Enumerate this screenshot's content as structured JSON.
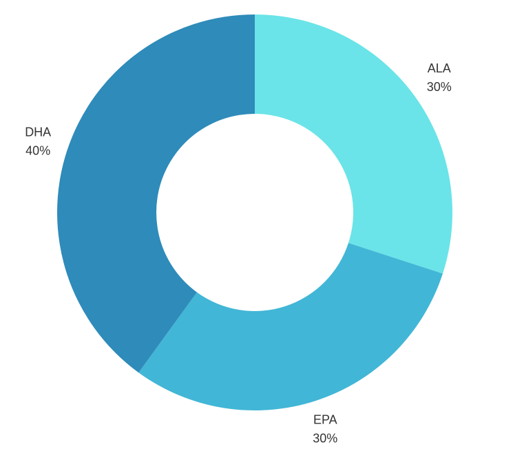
{
  "chart_data": {
    "type": "donut",
    "categories": [
      "ALA",
      "EPA",
      "DHA"
    ],
    "values": [
      30,
      30,
      40
    ],
    "value_labels": [
      "30%",
      "30%",
      "40%"
    ],
    "colors": [
      "#6ae4e8",
      "#42b6d6",
      "#2e8bba"
    ]
  }
}
